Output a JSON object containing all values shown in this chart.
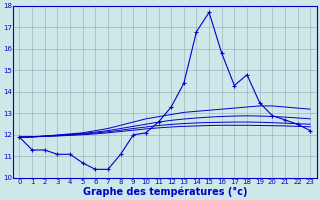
{
  "xlabel": "Graphe des températures (°c)",
  "hours": [
    0,
    1,
    2,
    3,
    4,
    5,
    6,
    7,
    8,
    9,
    10,
    11,
    12,
    13,
    14,
    15,
    16,
    17,
    18,
    19,
    20,
    21,
    22,
    23
  ],
  "temp_actual": [
    11.9,
    11.3,
    11.3,
    11.1,
    11.1,
    10.7,
    10.4,
    10.4,
    11.1,
    12.0,
    12.1,
    12.6,
    13.3,
    14.4,
    16.8,
    17.7,
    15.8,
    14.3,
    14.8,
    13.5,
    12.9,
    12.7,
    12.5,
    12.2
  ],
  "smooth1": [
    11.9,
    11.9,
    11.95,
    12.0,
    12.05,
    12.1,
    12.2,
    12.3,
    12.45,
    12.6,
    12.75,
    12.85,
    12.95,
    13.05,
    13.1,
    13.15,
    13.2,
    13.25,
    13.3,
    13.35,
    13.35,
    13.3,
    13.25,
    13.2
  ],
  "smooth2": [
    11.9,
    11.92,
    11.95,
    11.98,
    12.02,
    12.07,
    12.13,
    12.2,
    12.3,
    12.4,
    12.5,
    12.6,
    12.68,
    12.74,
    12.79,
    12.83,
    12.86,
    12.88,
    12.89,
    12.88,
    12.86,
    12.83,
    12.79,
    12.75
  ],
  "smooth3": [
    11.9,
    11.92,
    11.94,
    11.97,
    12.0,
    12.04,
    12.09,
    12.15,
    12.22,
    12.3,
    12.37,
    12.44,
    12.49,
    12.53,
    12.56,
    12.58,
    12.59,
    12.6,
    12.6,
    12.59,
    12.57,
    12.55,
    12.52,
    12.5
  ],
  "smooth4": [
    11.9,
    11.91,
    11.93,
    11.95,
    11.98,
    12.01,
    12.05,
    12.1,
    12.16,
    12.22,
    12.28,
    12.33,
    12.37,
    12.4,
    12.42,
    12.44,
    12.45,
    12.45,
    12.45,
    12.44,
    12.43,
    12.42,
    12.4,
    12.38
  ],
  "bg_color": "#cce8e8",
  "line_color": "#0000cc",
  "grid_color": "#99aabb",
  "ylim": [
    10,
    18
  ],
  "xlim": [
    -0.5,
    23.5
  ],
  "yticks": [
    10,
    11,
    12,
    13,
    14,
    15,
    16,
    17,
    18
  ],
  "xticks": [
    0,
    1,
    2,
    3,
    4,
    5,
    6,
    7,
    8,
    9,
    10,
    11,
    12,
    13,
    14,
    15,
    16,
    17,
    18,
    19,
    20,
    21,
    22,
    23
  ],
  "tick_fontsize": 5.0,
  "xlabel_fontsize": 7.0
}
